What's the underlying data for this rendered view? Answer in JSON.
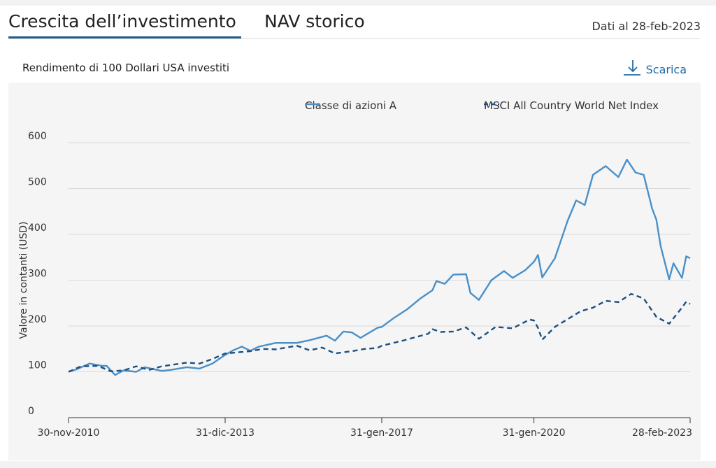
{
  "tabs": [
    {
      "label": "Crescita dell’investimento",
      "active": true
    },
    {
      "label": "NAV storico",
      "active": false
    }
  ],
  "as_of": "Dati al 28-feb-2023",
  "subtitle": "Rendimento di 100 Dollari USA investiti",
  "download": {
    "label": "Scarica",
    "icon": "download-arrow-icon"
  },
  "colors": {
    "fund": "#4a90c8",
    "index": "#1f4f7f",
    "active_tab": "#1f5f8b",
    "link": "#1f6ea8"
  },
  "chart_data": {
    "type": "line",
    "ylabel": "Valore in contanti (USD)",
    "ylim": [
      0,
      600
    ],
    "yticks": [
      0,
      100,
      200,
      300,
      400,
      500,
      600
    ],
    "xlim": [
      "2010-11-30",
      "2023-02-28"
    ],
    "xticks": [
      {
        "date": "2010-11-30",
        "label": "30-nov-2010"
      },
      {
        "date": "2013-12-31",
        "label": "31-dic-2013"
      },
      {
        "date": "2017-01-31",
        "label": "31-gen-2017"
      },
      {
        "date": "2020-01-31",
        "label": "31-gen-2020"
      },
      {
        "date": "2023-02-28",
        "label": "28-feb-2023"
      }
    ],
    "grid": true,
    "legend_position": "top-right",
    "series": [
      {
        "name": "Classe di azioni A",
        "style": "solid",
        "points": [
          [
            "2010-11-30",
            100
          ],
          [
            "2011-01-31",
            106
          ],
          [
            "2011-04-30",
            118
          ],
          [
            "2011-07-31",
            113
          ],
          [
            "2011-08-31",
            113
          ],
          [
            "2011-10-31",
            93
          ],
          [
            "2011-12-31",
            103
          ],
          [
            "2012-03-31",
            100
          ],
          [
            "2012-05-31",
            110
          ],
          [
            "2012-09-30",
            102
          ],
          [
            "2012-11-30",
            104
          ],
          [
            "2013-03-31",
            110
          ],
          [
            "2013-06-30",
            107
          ],
          [
            "2013-09-30",
            118
          ],
          [
            "2013-12-31",
            137
          ],
          [
            "2014-02-28",
            147
          ],
          [
            "2014-04-30",
            155
          ],
          [
            "2014-06-30",
            146
          ],
          [
            "2014-08-31",
            155
          ],
          [
            "2014-12-31",
            163
          ],
          [
            "2015-05-31",
            163
          ],
          [
            "2015-08-31",
            169
          ],
          [
            "2015-12-31",
            179
          ],
          [
            "2016-02-29",
            168
          ],
          [
            "2016-04-30",
            188
          ],
          [
            "2016-06-30",
            186
          ],
          [
            "2016-08-31",
            174
          ],
          [
            "2016-10-31",
            185
          ],
          [
            "2016-12-31",
            196
          ],
          [
            "2017-01-31",
            198
          ],
          [
            "2017-04-30",
            218
          ],
          [
            "2017-07-31",
            236
          ],
          [
            "2017-10-31",
            259
          ],
          [
            "2018-01-31",
            278
          ],
          [
            "2018-02-28",
            298
          ],
          [
            "2018-04-30",
            292
          ],
          [
            "2018-06-30",
            312
          ],
          [
            "2018-09-30",
            313
          ],
          [
            "2018-10-31",
            272
          ],
          [
            "2018-12-31",
            257
          ],
          [
            "2019-03-31",
            300
          ],
          [
            "2019-06-30",
            320
          ],
          [
            "2019-08-31",
            305
          ],
          [
            "2019-11-30",
            322
          ],
          [
            "2020-01-31",
            340
          ],
          [
            "2020-02-29",
            355
          ],
          [
            "2020-03-31",
            306
          ],
          [
            "2020-06-30",
            348
          ],
          [
            "2020-09-30",
            430
          ],
          [
            "2020-11-30",
            474
          ],
          [
            "2021-01-31",
            464
          ],
          [
            "2021-03-31",
            530
          ],
          [
            "2021-06-30",
            549
          ],
          [
            "2021-09-30",
            525
          ],
          [
            "2021-11-30",
            563
          ],
          [
            "2022-01-31",
            535
          ],
          [
            "2022-03-31",
            530
          ],
          [
            "2022-05-31",
            456
          ],
          [
            "2022-06-30",
            432
          ],
          [
            "2022-07-31",
            374
          ],
          [
            "2022-09-30",
            302
          ],
          [
            "2022-10-31",
            337
          ],
          [
            "2022-12-31",
            305
          ],
          [
            "2023-01-31",
            352
          ],
          [
            "2023-02-28",
            348
          ]
        ]
      },
      {
        "name": "MSCI All Country World Net Index",
        "style": "dashed",
        "points": [
          [
            "2010-11-30",
            100
          ],
          [
            "2011-02-28",
            112
          ],
          [
            "2011-06-30",
            113
          ],
          [
            "2011-09-30",
            101
          ],
          [
            "2011-12-31",
            103
          ],
          [
            "2012-03-31",
            112
          ],
          [
            "2012-06-30",
            104
          ],
          [
            "2012-09-30",
            112
          ],
          [
            "2013-03-31",
            120
          ],
          [
            "2013-06-30",
            118
          ],
          [
            "2013-09-30",
            128
          ],
          [
            "2013-12-31",
            140
          ],
          [
            "2014-06-30",
            145
          ],
          [
            "2014-09-30",
            150
          ],
          [
            "2014-12-31",
            149
          ],
          [
            "2015-05-31",
            157
          ],
          [
            "2015-08-31",
            147
          ],
          [
            "2015-11-30",
            153
          ],
          [
            "2016-02-29",
            140
          ],
          [
            "2016-06-30",
            145
          ],
          [
            "2016-09-30",
            150
          ],
          [
            "2016-12-31",
            152
          ],
          [
            "2017-01-31",
            157
          ],
          [
            "2017-06-30",
            168
          ],
          [
            "2017-12-31",
            183
          ],
          [
            "2018-01-31",
            193
          ],
          [
            "2018-03-31",
            187
          ],
          [
            "2018-06-30",
            188
          ],
          [
            "2018-09-30",
            197
          ],
          [
            "2018-12-31",
            172
          ],
          [
            "2019-04-30",
            198
          ],
          [
            "2019-08-31",
            195
          ],
          [
            "2019-12-31",
            214
          ],
          [
            "2020-01-31",
            212
          ],
          [
            "2020-02-29",
            196
          ],
          [
            "2020-03-31",
            170
          ],
          [
            "2020-06-30",
            198
          ],
          [
            "2020-09-30",
            215
          ],
          [
            "2020-12-31",
            232
          ],
          [
            "2021-03-31",
            240
          ],
          [
            "2021-06-30",
            255
          ],
          [
            "2021-09-30",
            252
          ],
          [
            "2021-12-31",
            270
          ],
          [
            "2022-03-31",
            260
          ],
          [
            "2022-06-30",
            220
          ],
          [
            "2022-09-30",
            205
          ],
          [
            "2022-12-31",
            240
          ],
          [
            "2023-01-31",
            253
          ],
          [
            "2023-02-28",
            248
          ]
        ]
      }
    ]
  }
}
